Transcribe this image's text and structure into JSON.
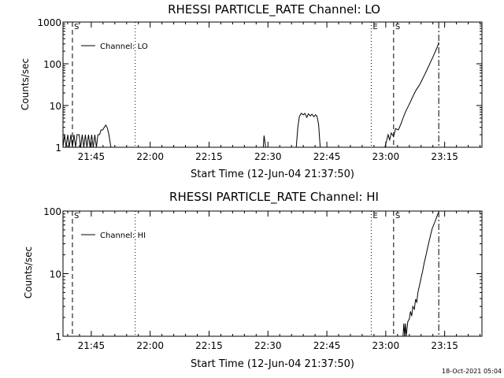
{
  "chart_data": [
    {
      "type": "line",
      "title": "RHESSI PARTICLE_RATE Channel: LO",
      "xlabel": "Start Time (12-Jun-04 21:37:50)",
      "ylabel": "Counts/sec",
      "x_tick_labels": [
        "21:45",
        "22:00",
        "22:15",
        "22:30",
        "22:45",
        "23:00",
        "23:15"
      ],
      "x_tick_minutes": [
        585,
        600,
        615,
        630,
        645,
        660,
        675
      ],
      "xlim_minutes": [
        577.8,
        684.5
      ],
      "yscale": "log",
      "ylim": [
        1,
        1000
      ],
      "y_tick_values": [
        1,
        10,
        100,
        1000
      ],
      "y_tick_labels": [
        "1",
        "10",
        "100",
        "1000"
      ],
      "legend": {
        "placement": "top-left",
        "entries": [
          "Channel: LO"
        ]
      },
      "markers": [
        {
          "label": "S",
          "minute": 580.2,
          "style": "dashed"
        },
        {
          "label": "",
          "minute": 596.2,
          "style": "dotted"
        },
        {
          "label": "E",
          "minute": 656.3,
          "style": "dotted"
        },
        {
          "label": "S",
          "minute": 662.0,
          "style": "dashed"
        },
        {
          "label": "",
          "minute": 673.5,
          "style": "dashdot"
        }
      ],
      "series": [
        {
          "name": "Channel: LO",
          "segments": [
            [
              [
                577.8,
                1
              ],
              [
                578.2,
                2
              ],
              [
                578.6,
                1
              ],
              [
                579.0,
                2
              ],
              [
                579.4,
                1
              ],
              [
                579.8,
                2
              ],
              [
                580.2,
                1
              ],
              [
                580.6,
                2
              ],
              [
                581.0,
                1
              ],
              [
                581.4,
                2
              ],
              [
                581.9,
                2
              ],
              [
                582.3,
                1
              ],
              [
                582.7,
                2
              ],
              [
                583.1,
                1
              ],
              [
                583.5,
                2
              ],
              [
                583.9,
                1
              ],
              [
                584.3,
                2
              ],
              [
                584.7,
                1
              ],
              [
                585.1,
                2
              ],
              [
                585.5,
                1
              ],
              [
                585.9,
                2
              ],
              [
                586.3,
                1
              ],
              [
                586.7,
                2
              ],
              [
                587.1,
                2
              ],
              [
                587.5,
                2.6
              ],
              [
                587.9,
                2.6
              ],
              [
                588.3,
                3
              ],
              [
                588.7,
                3.4
              ],
              [
                589.1,
                2.9
              ],
              [
                589.5,
                2
              ],
              [
                590.0,
                1
              ]
            ],
            [
              [
                628.8,
                1
              ],
              [
                629.0,
                1.9
              ],
              [
                629.4,
                1
              ]
            ],
            [
              [
                637.2,
                1
              ],
              [
                637.6,
                3
              ],
              [
                638.0,
                5.5
              ],
              [
                638.5,
                6.5
              ],
              [
                639.0,
                6
              ],
              [
                639.4,
                6.5
              ],
              [
                639.9,
                5.2
              ],
              [
                640.3,
                6.3
              ],
              [
                640.8,
                5.6
              ],
              [
                641.2,
                6.2
              ],
              [
                641.7,
                5.4
              ],
              [
                642.1,
                6
              ],
              [
                642.5,
                5.5
              ],
              [
                642.9,
                3.5
              ],
              [
                643.3,
                1
              ]
            ],
            [
              [
                659.8,
                1
              ],
              [
                660.2,
                1.4
              ],
              [
                660.6,
                2
              ],
              [
                661.0,
                1.5
              ],
              [
                661.4,
                2.2
              ],
              [
                662.0,
                1.8
              ],
              [
                662.5,
                2.8
              ],
              [
                663.2,
                2.6
              ],
              [
                663.8,
                3.5
              ],
              [
                664.4,
                5
              ],
              [
                665.0,
                7
              ],
              [
                665.7,
                9.5
              ],
              [
                666.4,
                13
              ],
              [
                667.1,
                18
              ],
              [
                667.8,
                24
              ],
              [
                668.5,
                30
              ],
              [
                669.2,
                40
              ],
              [
                669.9,
                55
              ],
              [
                670.6,
                75
              ],
              [
                671.3,
                105
              ],
              [
                672.0,
                145
              ],
              [
                672.7,
                205
              ],
              [
                673.3,
                280
              ],
              [
                673.5,
                330
              ]
            ]
          ]
        }
      ]
    },
    {
      "type": "line",
      "title": "RHESSI PARTICLE_RATE Channel: HI",
      "xlabel": "Start Time (12-Jun-04 21:37:50)",
      "ylabel": "Counts/sec",
      "x_tick_labels": [
        "21:45",
        "22:00",
        "22:15",
        "22:30",
        "22:45",
        "23:00",
        "23:15"
      ],
      "x_tick_minutes": [
        585,
        600,
        615,
        630,
        645,
        660,
        675
      ],
      "xlim_minutes": [
        577.8,
        684.5
      ],
      "yscale": "log",
      "ylim": [
        1,
        100
      ],
      "y_tick_values": [
        1,
        10,
        100
      ],
      "y_tick_labels": [
        "1",
        "10",
        "100"
      ],
      "legend": {
        "placement": "top-left",
        "entries": [
          "Channel: HI"
        ]
      },
      "markers": [
        {
          "label": "S",
          "minute": 580.2,
          "style": "dashed"
        },
        {
          "label": "",
          "minute": 596.2,
          "style": "dotted"
        },
        {
          "label": "E",
          "minute": 656.3,
          "style": "dotted"
        },
        {
          "label": "S",
          "minute": 662.0,
          "style": "dashed"
        },
        {
          "label": "",
          "minute": 673.5,
          "style": "dashdot"
        }
      ],
      "series": [
        {
          "name": "Channel: HI",
          "segments": [
            [
              [
                664.4,
                1
              ],
              [
                664.6,
                1.6
              ],
              [
                664.8,
                1
              ],
              [
                665.0,
                1.6
              ],
              [
                665.2,
                1
              ],
              [
                665.6,
                1.7
              ],
              [
                666.0,
                1.9
              ],
              [
                666.3,
                2.5
              ],
              [
                666.6,
                2.1
              ],
              [
                666.9,
                3
              ],
              [
                667.3,
                2.7
              ],
              [
                667.6,
                3.9
              ],
              [
                667.9,
                3.5
              ],
              [
                668.2,
                5
              ],
              [
                668.6,
                6.5
              ],
              [
                669.0,
                8.5
              ],
              [
                669.4,
                11
              ],
              [
                669.8,
                15
              ],
              [
                670.2,
                19
              ],
              [
                670.6,
                25
              ],
              [
                671.0,
                32
              ],
              [
                671.4,
                41
              ],
              [
                671.8,
                52
              ],
              [
                672.3,
                62
              ],
              [
                672.8,
                75
              ],
              [
                673.2,
                88
              ],
              [
                673.5,
                96
              ]
            ]
          ]
        }
      ]
    }
  ],
  "footer": {
    "timestamp": "18-Oct-2021 05:04"
  }
}
